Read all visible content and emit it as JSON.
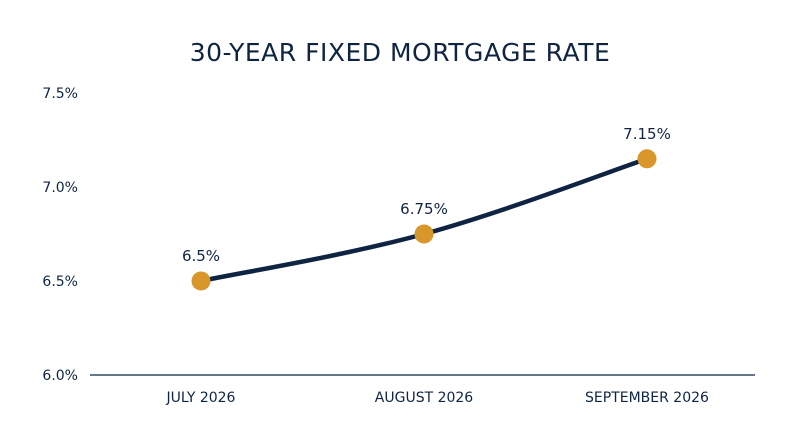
{
  "chart_data": {
    "type": "line",
    "title": "30-YEAR FIXED MORTGAGE RATE",
    "xlabel": "",
    "ylabel": "",
    "categories": [
      "JULY 2026",
      "AUGUST 2026",
      "SEPTEMBER 2026"
    ],
    "series": [
      {
        "values": [
          6.5,
          6.75,
          7.15
        ],
        "data_labels": [
          "6.5%",
          "6.75%",
          "7.15%"
        ]
      }
    ],
    "ylim": [
      6.0,
      7.5
    ],
    "y_ticks": [
      6.0,
      6.5,
      7.0,
      7.5
    ],
    "y_tick_labels": [
      "6.0%",
      "6.5%",
      "7.0%",
      "7.5%"
    ],
    "grid": false,
    "legend": "none",
    "colors": {
      "line": "#0f2443",
      "marker": "#d9972b",
      "axis": "#0f2443",
      "text": "#0f2443"
    }
  }
}
